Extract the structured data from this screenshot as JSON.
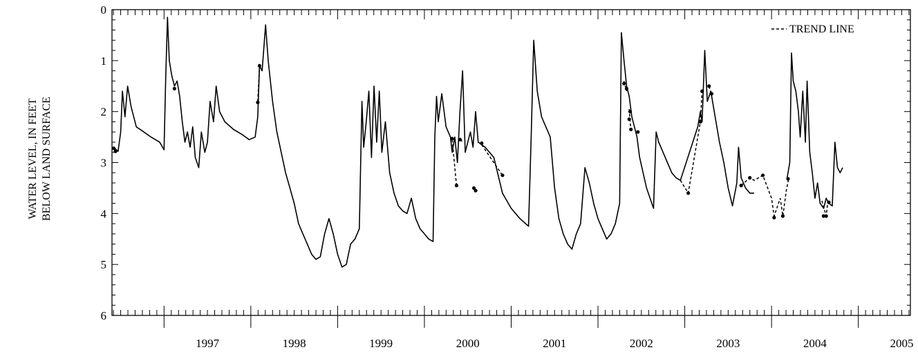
{
  "chart_data": {
    "type": "line",
    "title": "",
    "ylabel_line1": "WATER LEVEL, IN FEET",
    "ylabel_line2": "BELOW LAND SURFACE",
    "xlabel": "",
    "y_inverted": true,
    "ylim": [
      0,
      6
    ],
    "y_ticks": [
      "0",
      "1",
      "2",
      "3",
      "4",
      "5",
      "6"
    ],
    "xlim": [
      1996.4,
      2005.6
    ],
    "x_tick_labels": [
      "1997",
      "1998",
      "1999",
      "2000",
      "2001",
      "2002",
      "2003",
      "2004",
      "2005"
    ],
    "legend": {
      "position": "top-right",
      "label": "TREND LINE"
    },
    "series": [
      {
        "name": "",
        "style": "solid",
        "points": [
          [
            1996.42,
            2.7
          ],
          [
            1996.47,
            2.78
          ],
          [
            1996.5,
            2.4
          ],
          [
            1996.52,
            1.6
          ],
          [
            1996.55,
            2.1
          ],
          [
            1996.58,
            1.5
          ],
          [
            1996.62,
            1.9
          ],
          [
            1996.68,
            2.3
          ],
          [
            1996.75,
            2.38
          ],
          [
            1996.85,
            2.5
          ],
          [
            1996.95,
            2.6
          ],
          [
            1997.0,
            2.75
          ],
          [
            1997.02,
            1.3
          ],
          [
            1997.04,
            0.15
          ],
          [
            1997.06,
            1.0
          ],
          [
            1997.09,
            1.3
          ],
          [
            1997.12,
            1.5
          ],
          [
            1997.15,
            1.4
          ],
          [
            1997.18,
            1.7
          ],
          [
            1997.21,
            2.2
          ],
          [
            1997.24,
            2.6
          ],
          [
            1997.27,
            2.4
          ],
          [
            1997.3,
            2.7
          ],
          [
            1997.33,
            2.3
          ],
          [
            1997.36,
            2.9
          ],
          [
            1997.4,
            3.1
          ],
          [
            1997.43,
            2.4
          ],
          [
            1997.47,
            2.8
          ],
          [
            1997.5,
            2.6
          ],
          [
            1997.53,
            1.8
          ],
          [
            1997.57,
            2.2
          ],
          [
            1997.6,
            1.5
          ],
          [
            1997.64,
            2.0
          ],
          [
            1997.7,
            2.2
          ],
          [
            1997.8,
            2.35
          ],
          [
            1997.9,
            2.45
          ],
          [
            1997.98,
            2.55
          ],
          [
            1998.05,
            2.5
          ],
          [
            1998.08,
            2.1
          ],
          [
            1998.1,
            1.1
          ],
          [
            1998.13,
            1.2
          ],
          [
            1998.17,
            0.3
          ],
          [
            1998.2,
            1.0
          ],
          [
            1998.25,
            1.8
          ],
          [
            1998.3,
            2.4
          ],
          [
            1998.35,
            2.8
          ],
          [
            1998.4,
            3.2
          ],
          [
            1998.45,
            3.5
          ],
          [
            1998.5,
            3.8
          ],
          [
            1998.55,
            4.2
          ],
          [
            1998.6,
            4.4
          ],
          [
            1998.65,
            4.6
          ],
          [
            1998.7,
            4.8
          ],
          [
            1998.75,
            4.9
          ],
          [
            1998.8,
            4.85
          ],
          [
            1998.85,
            4.4
          ],
          [
            1998.9,
            4.1
          ],
          [
            1998.95,
            4.4
          ],
          [
            1999.0,
            4.8
          ],
          [
            1999.05,
            5.05
          ],
          [
            1999.1,
            5.0
          ],
          [
            1999.15,
            4.6
          ],
          [
            1999.2,
            4.5
          ],
          [
            1999.25,
            4.3
          ],
          [
            1999.28,
            1.8
          ],
          [
            1999.3,
            2.7
          ],
          [
            1999.33,
            2.2
          ],
          [
            1999.36,
            1.6
          ],
          [
            1999.39,
            2.9
          ],
          [
            1999.42,
            1.5
          ],
          [
            1999.45,
            2.6
          ],
          [
            1999.48,
            1.6
          ],
          [
            1999.51,
            2.8
          ],
          [
            1999.55,
            2.2
          ],
          [
            1999.6,
            3.2
          ],
          [
            1999.65,
            3.6
          ],
          [
            1999.7,
            3.85
          ],
          [
            1999.75,
            3.95
          ],
          [
            1999.8,
            4.0
          ],
          [
            1999.85,
            3.7
          ],
          [
            1999.9,
            4.1
          ],
          [
            1999.95,
            4.3
          ],
          [
            2000.0,
            4.4
          ],
          [
            2000.05,
            4.5
          ],
          [
            2000.1,
            4.55
          ],
          [
            2000.12,
            2.5
          ],
          [
            2000.14,
            1.7
          ],
          [
            2000.16,
            2.2
          ],
          [
            2000.2,
            1.65
          ],
          [
            2000.25,
            2.3
          ],
          [
            2000.3,
            2.5
          ],
          [
            2000.32,
            2.8
          ],
          [
            2000.35,
            2.5
          ],
          [
            2000.38,
            3.0
          ],
          [
            2000.41,
            2.0
          ],
          [
            2000.44,
            1.2
          ],
          [
            2000.47,
            2.8
          ],
          [
            2000.5,
            2.6
          ],
          [
            2000.53,
            2.4
          ],
          [
            2000.56,
            2.7
          ],
          [
            2000.59,
            2.0
          ],
          [
            2000.62,
            2.6
          ],
          [
            2000.7,
            2.7
          ],
          [
            2000.8,
            2.9
          ],
          [
            2000.9,
            3.6
          ],
          [
            2001.0,
            3.9
          ],
          [
            2001.1,
            4.1
          ],
          [
            2001.2,
            4.25
          ],
          [
            2001.23,
            2.5
          ],
          [
            2001.26,
            0.6
          ],
          [
            2001.3,
            1.6
          ],
          [
            2001.35,
            2.1
          ],
          [
            2001.4,
            2.3
          ],
          [
            2001.45,
            2.5
          ],
          [
            2001.5,
            3.5
          ],
          [
            2001.55,
            4.1
          ],
          [
            2001.6,
            4.4
          ],
          [
            2001.65,
            4.6
          ],
          [
            2001.7,
            4.7
          ],
          [
            2001.75,
            4.4
          ],
          [
            2001.8,
            4.2
          ],
          [
            2001.85,
            3.1
          ],
          [
            2001.9,
            3.4
          ],
          [
            2001.95,
            3.8
          ],
          [
            2002.0,
            4.1
          ],
          [
            2002.05,
            4.3
          ],
          [
            2002.1,
            4.5
          ],
          [
            2002.15,
            4.4
          ],
          [
            2002.2,
            4.2
          ],
          [
            2002.25,
            3.8
          ],
          [
            2002.27,
            0.45
          ],
          [
            2002.3,
            1.0
          ],
          [
            2002.33,
            1.5
          ],
          [
            2002.36,
            1.7
          ],
          [
            2002.39,
            2.1
          ],
          [
            2002.42,
            2.3
          ],
          [
            2002.45,
            2.5
          ],
          [
            2002.48,
            2.9
          ],
          [
            2002.52,
            3.2
          ],
          [
            2002.56,
            3.5
          ],
          [
            2002.6,
            3.7
          ],
          [
            2002.64,
            3.9
          ],
          [
            2002.67,
            2.4
          ],
          [
            2002.7,
            2.6
          ],
          [
            2002.75,
            2.8
          ],
          [
            2002.8,
            3.0
          ],
          [
            2002.85,
            3.2
          ],
          [
            2002.9,
            3.3
          ],
          [
            2002.95,
            3.35
          ],
          [
            2003.15,
            2.3
          ],
          [
            2003.18,
            2.0
          ],
          [
            2003.2,
            2.2
          ],
          [
            2003.23,
            0.8
          ],
          [
            2003.26,
            1.8
          ],
          [
            2003.3,
            1.6
          ],
          [
            2003.35,
            2.1
          ],
          [
            2003.4,
            2.6
          ],
          [
            2003.45,
            3.0
          ],
          [
            2003.5,
            3.5
          ],
          [
            2003.55,
            3.85
          ],
          [
            2003.6,
            3.4
          ],
          [
            2003.62,
            2.7
          ],
          [
            2003.65,
            3.3
          ],
          [
            2003.7,
            3.5
          ],
          [
            2003.75,
            3.6
          ],
          [
            2003.8,
            3.6
          ]
        ]
      },
      {
        "name": "",
        "style": "solid",
        "points": [
          [
            2004.18,
            3.3
          ],
          [
            2004.21,
            3.0
          ],
          [
            2004.23,
            0.85
          ],
          [
            2004.25,
            1.4
          ],
          [
            2004.28,
            1.6
          ],
          [
            2004.31,
            2.0
          ],
          [
            2004.33,
            2.5
          ],
          [
            2004.36,
            1.6
          ],
          [
            2004.39,
            2.6
          ],
          [
            2004.41,
            1.4
          ],
          [
            2004.44,
            2.8
          ],
          [
            2004.47,
            3.2
          ],
          [
            2004.5,
            3.7
          ],
          [
            2004.53,
            3.4
          ],
          [
            2004.56,
            3.8
          ],
          [
            2004.6,
            3.9
          ],
          [
            2004.63,
            3.7
          ],
          [
            2004.66,
            3.8
          ],
          [
            2004.7,
            3.85
          ],
          [
            2004.73,
            2.6
          ],
          [
            2004.76,
            3.1
          ],
          [
            2004.79,
            3.2
          ],
          [
            2004.82,
            3.1
          ]
        ]
      },
      {
        "name": "TREND LINE",
        "style": "dashed",
        "segments": [
          [
            [
              1998.08,
              1.8
            ],
            [
              1998.1,
              1.1
            ]
          ],
          [
            [
              2000.32,
              2.55
            ],
            [
              2000.37,
              3.45
            ]
          ],
          [
            [
              2000.41,
              2.55
            ],
            [
              2000.45,
              2.6
            ]
          ],
          [
            [
              2000.57,
              3.5
            ],
            [
              2000.59,
              3.55
            ]
          ],
          [
            [
              2000.66,
              2.65
            ],
            [
              2000.9,
              3.25
            ]
          ],
          [
            [
              2002.3,
              1.4
            ],
            [
              2002.33,
              1.6
            ]
          ],
          [
            [
              2002.36,
              1.95
            ],
            [
              2002.38,
              2.4
            ]
          ],
          [
            [
              2002.95,
              3.35
            ],
            [
              2003.04,
              3.6
            ],
            [
              2003.18,
              2.2
            ],
            [
              2003.2,
              1.6
            ]
          ],
          [
            [
              2003.28,
              1.5
            ],
            [
              2003.31,
              1.7
            ]
          ],
          [
            [
              2003.65,
              3.45
            ],
            [
              2003.75,
              3.3
            ],
            [
              2003.8,
              3.35
            ],
            [
              2003.9,
              3.25
            ],
            [
              2004.0,
              3.7
            ],
            [
              2004.03,
              4.05
            ],
            [
              2004.1,
              3.7
            ],
            [
              2004.13,
              4.05
            ],
            [
              2004.17,
              3.55
            ],
            [
              2004.2,
              3.3
            ]
          ],
          [
            [
              2004.58,
              3.75
            ],
            [
              2004.63,
              4.05
            ],
            [
              2004.65,
              3.75
            ]
          ]
        ]
      }
    ],
    "markers": [
      [
        1996.42,
        2.72
      ],
      [
        1996.44,
        2.78
      ],
      [
        1997.12,
        1.55
      ],
      [
        1998.08,
        1.82
      ],
      [
        1998.1,
        1.1
      ],
      [
        2000.32,
        2.53
      ],
      [
        2000.37,
        3.45
      ],
      [
        2000.41,
        2.55
      ],
      [
        2000.57,
        3.5
      ],
      [
        2000.59,
        3.55
      ],
      [
        2000.66,
        2.62
      ],
      [
        2000.9,
        3.25
      ],
      [
        2002.3,
        1.45
      ],
      [
        2002.33,
        1.55
      ],
      [
        2002.36,
        2.15
      ],
      [
        2002.38,
        2.35
      ],
      [
        2002.37,
        2.0
      ],
      [
        2002.46,
        2.4
      ],
      [
        2003.04,
        3.6
      ],
      [
        2003.18,
        2.2
      ],
      [
        2003.2,
        1.6
      ],
      [
        2003.28,
        1.5
      ],
      [
        2003.31,
        1.65
      ],
      [
        2003.65,
        3.45
      ],
      [
        2003.75,
        3.3
      ],
      [
        2003.9,
        3.25
      ],
      [
        2004.03,
        4.08
      ],
      [
        2004.13,
        4.05
      ],
      [
        2004.19,
        3.32
      ],
      [
        2004.6,
        4.05
      ],
      [
        2004.63,
        4.05
      ],
      [
        2004.66,
        3.78
      ]
    ]
  }
}
